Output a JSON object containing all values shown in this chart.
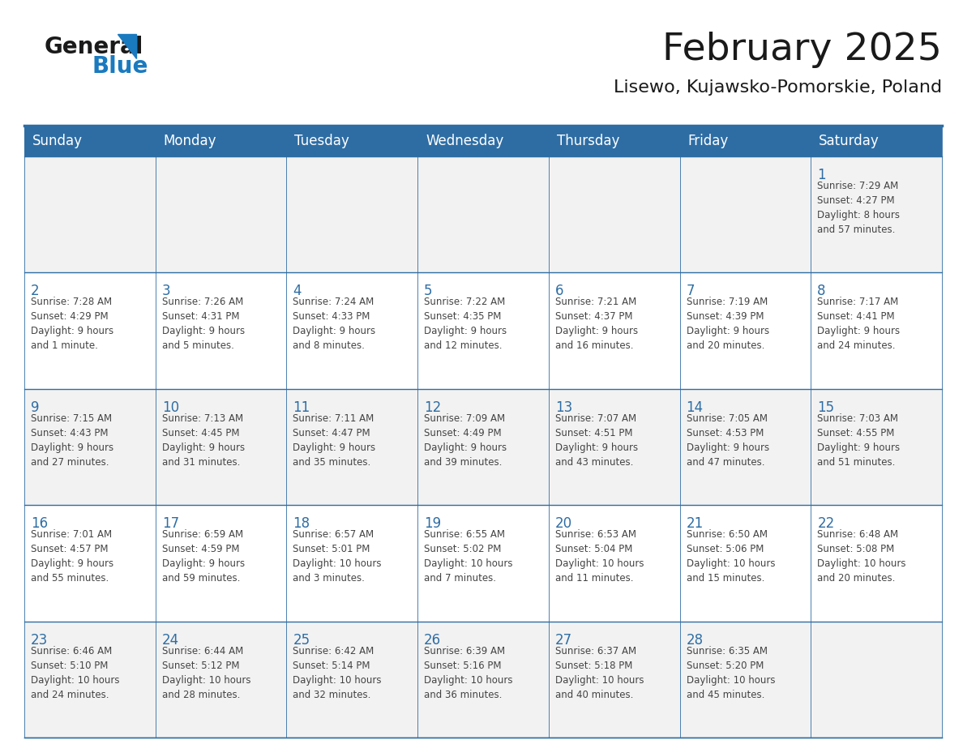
{
  "title": "February 2025",
  "subtitle": "Lisewo, Kujawsko-Pomorskie, Poland",
  "header_bg": "#2E6DA4",
  "header_text": "#FFFFFF",
  "cell_bg_odd": "#F2F2F2",
  "cell_bg_even": "#FFFFFF",
  "day_number_color": "#2E6DA4",
  "cell_text_color": "#444444",
  "border_color": "#2E6DA4",
  "days_of_week": [
    "Sunday",
    "Monday",
    "Tuesday",
    "Wednesday",
    "Thursday",
    "Friday",
    "Saturday"
  ],
  "weeks": [
    [
      {
        "day": null,
        "info": null
      },
      {
        "day": null,
        "info": null
      },
      {
        "day": null,
        "info": null
      },
      {
        "day": null,
        "info": null
      },
      {
        "day": null,
        "info": null
      },
      {
        "day": null,
        "info": null
      },
      {
        "day": 1,
        "info": "Sunrise: 7:29 AM\nSunset: 4:27 PM\nDaylight: 8 hours\nand 57 minutes."
      }
    ],
    [
      {
        "day": 2,
        "info": "Sunrise: 7:28 AM\nSunset: 4:29 PM\nDaylight: 9 hours\nand 1 minute."
      },
      {
        "day": 3,
        "info": "Sunrise: 7:26 AM\nSunset: 4:31 PM\nDaylight: 9 hours\nand 5 minutes."
      },
      {
        "day": 4,
        "info": "Sunrise: 7:24 AM\nSunset: 4:33 PM\nDaylight: 9 hours\nand 8 minutes."
      },
      {
        "day": 5,
        "info": "Sunrise: 7:22 AM\nSunset: 4:35 PM\nDaylight: 9 hours\nand 12 minutes."
      },
      {
        "day": 6,
        "info": "Sunrise: 7:21 AM\nSunset: 4:37 PM\nDaylight: 9 hours\nand 16 minutes."
      },
      {
        "day": 7,
        "info": "Sunrise: 7:19 AM\nSunset: 4:39 PM\nDaylight: 9 hours\nand 20 minutes."
      },
      {
        "day": 8,
        "info": "Sunrise: 7:17 AM\nSunset: 4:41 PM\nDaylight: 9 hours\nand 24 minutes."
      }
    ],
    [
      {
        "day": 9,
        "info": "Sunrise: 7:15 AM\nSunset: 4:43 PM\nDaylight: 9 hours\nand 27 minutes."
      },
      {
        "day": 10,
        "info": "Sunrise: 7:13 AM\nSunset: 4:45 PM\nDaylight: 9 hours\nand 31 minutes."
      },
      {
        "day": 11,
        "info": "Sunrise: 7:11 AM\nSunset: 4:47 PM\nDaylight: 9 hours\nand 35 minutes."
      },
      {
        "day": 12,
        "info": "Sunrise: 7:09 AM\nSunset: 4:49 PM\nDaylight: 9 hours\nand 39 minutes."
      },
      {
        "day": 13,
        "info": "Sunrise: 7:07 AM\nSunset: 4:51 PM\nDaylight: 9 hours\nand 43 minutes."
      },
      {
        "day": 14,
        "info": "Sunrise: 7:05 AM\nSunset: 4:53 PM\nDaylight: 9 hours\nand 47 minutes."
      },
      {
        "day": 15,
        "info": "Sunrise: 7:03 AM\nSunset: 4:55 PM\nDaylight: 9 hours\nand 51 minutes."
      }
    ],
    [
      {
        "day": 16,
        "info": "Sunrise: 7:01 AM\nSunset: 4:57 PM\nDaylight: 9 hours\nand 55 minutes."
      },
      {
        "day": 17,
        "info": "Sunrise: 6:59 AM\nSunset: 4:59 PM\nDaylight: 9 hours\nand 59 minutes."
      },
      {
        "day": 18,
        "info": "Sunrise: 6:57 AM\nSunset: 5:01 PM\nDaylight: 10 hours\nand 3 minutes."
      },
      {
        "day": 19,
        "info": "Sunrise: 6:55 AM\nSunset: 5:02 PM\nDaylight: 10 hours\nand 7 minutes."
      },
      {
        "day": 20,
        "info": "Sunrise: 6:53 AM\nSunset: 5:04 PM\nDaylight: 10 hours\nand 11 minutes."
      },
      {
        "day": 21,
        "info": "Sunrise: 6:50 AM\nSunset: 5:06 PM\nDaylight: 10 hours\nand 15 minutes."
      },
      {
        "day": 22,
        "info": "Sunrise: 6:48 AM\nSunset: 5:08 PM\nDaylight: 10 hours\nand 20 minutes."
      }
    ],
    [
      {
        "day": 23,
        "info": "Sunrise: 6:46 AM\nSunset: 5:10 PM\nDaylight: 10 hours\nand 24 minutes."
      },
      {
        "day": 24,
        "info": "Sunrise: 6:44 AM\nSunset: 5:12 PM\nDaylight: 10 hours\nand 28 minutes."
      },
      {
        "day": 25,
        "info": "Sunrise: 6:42 AM\nSunset: 5:14 PM\nDaylight: 10 hours\nand 32 minutes."
      },
      {
        "day": 26,
        "info": "Sunrise: 6:39 AM\nSunset: 5:16 PM\nDaylight: 10 hours\nand 36 minutes."
      },
      {
        "day": 27,
        "info": "Sunrise: 6:37 AM\nSunset: 5:18 PM\nDaylight: 10 hours\nand 40 minutes."
      },
      {
        "day": 28,
        "info": "Sunrise: 6:35 AM\nSunset: 5:20 PM\nDaylight: 10 hours\nand 45 minutes."
      },
      {
        "day": null,
        "info": null
      }
    ]
  ],
  "logo_color_general": "#1a1a1a",
  "logo_color_blue": "#1a7abf",
  "title_fontsize": 34,
  "subtitle_fontsize": 16,
  "header_fontsize": 12,
  "day_num_fontsize": 12,
  "cell_info_fontsize": 8.5
}
